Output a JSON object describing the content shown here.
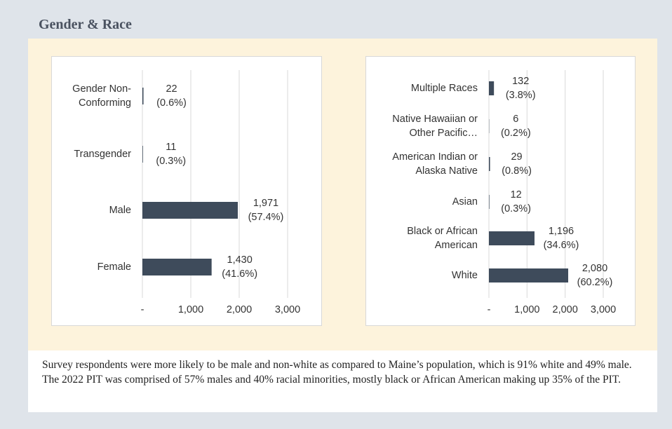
{
  "header": {
    "title": "Gender & Race"
  },
  "chart_data": [
    {
      "type": "bar",
      "orientation": "horizontal",
      "color": "#3e4b5b",
      "grid": true,
      "categories": [
        "Gender Non-\nConforming",
        "Transgender",
        "Male",
        "Female"
      ],
      "values": [
        22,
        11,
        1971,
        1430
      ],
      "value_labels": [
        "22\n(0.6%)",
        "11\n(0.3%)",
        "1,971\n(57.4%)",
        "1,430\n(41.6%)"
      ],
      "xlim": [
        0,
        3000
      ],
      "xticks": [
        {
          "value": 0,
          "label": "-"
        },
        {
          "value": 1000,
          "label": "1,000"
        },
        {
          "value": 2000,
          "label": "2,000"
        },
        {
          "value": 3000,
          "label": "3,000"
        }
      ]
    },
    {
      "type": "bar",
      "orientation": "horizontal",
      "color": "#3e4b5b",
      "grid": true,
      "categories": [
        "Multiple Races",
        "Native Hawaiian or\nOther Pacific…",
        "American Indian or\nAlaska Native",
        "Asian",
        "Black or African\nAmerican",
        "White"
      ],
      "values": [
        132,
        6,
        29,
        12,
        1196,
        2080
      ],
      "value_labels": [
        "132\n(3.8%)",
        "6\n(0.2%)",
        "29\n(0.8%)",
        "12\n(0.3%)",
        "1,196\n(34.6%)",
        "2,080\n(60.2%)"
      ],
      "xlim": [
        0,
        3000
      ],
      "xticks": [
        {
          "value": 0,
          "label": "-"
        },
        {
          "value": 1000,
          "label": "1,000"
        },
        {
          "value": 2000,
          "label": "2,000"
        },
        {
          "value": 3000,
          "label": "3,000"
        }
      ]
    }
  ],
  "footnote": "Survey respondents were more likely to be male and non-white as compared to Maine’s population, which is 91% white and 49% male. The 2022 PIT was comprised of 57% males and 40% racial minorities, mostly black or African American making up 35% of the PIT."
}
